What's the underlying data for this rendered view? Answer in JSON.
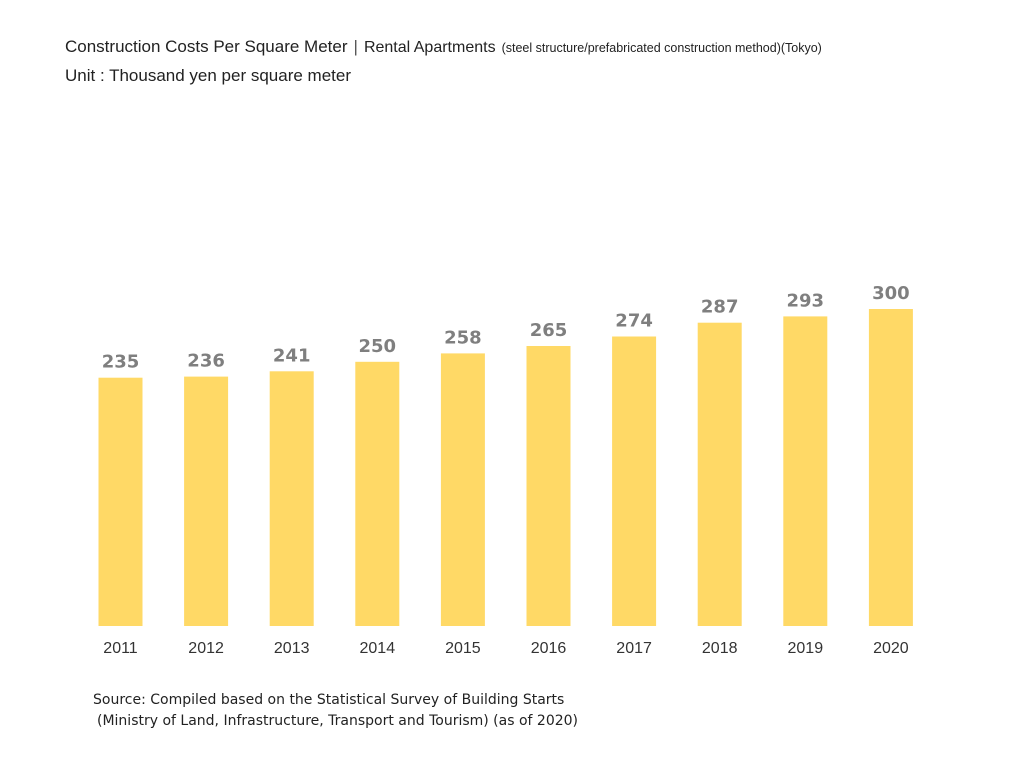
{
  "chart_data": {
    "type": "bar",
    "title": "Construction Costs Per Square Meter",
    "title_separator": "|",
    "subtitle": "Rental Apartments",
    "subtitle_note": "(steel structure/prefabricated construction method)(Tokyo)",
    "unit_label": "Unit : Thousand yen per square meter",
    "categories": [
      "2011",
      "2012",
      "2013",
      "2014",
      "2015",
      "2016",
      "2017",
      "2018",
      "2019",
      "2020"
    ],
    "values": [
      235,
      236,
      241,
      250,
      258,
      265,
      274,
      287,
      293,
      300
    ],
    "xlabel": "",
    "ylabel": "",
    "ylim": [
      0,
      300
    ],
    "grid": false,
    "legend": "none",
    "colors": {
      "bar": "#FFD966",
      "value_label": "#7F7F7F"
    }
  },
  "source": {
    "line1": "Source: Compiled based on the Statistical Survey of Building Starts",
    "line2": "(Ministry of Land, Infrastructure, Transport and Tourism) (as of 2020)"
  }
}
